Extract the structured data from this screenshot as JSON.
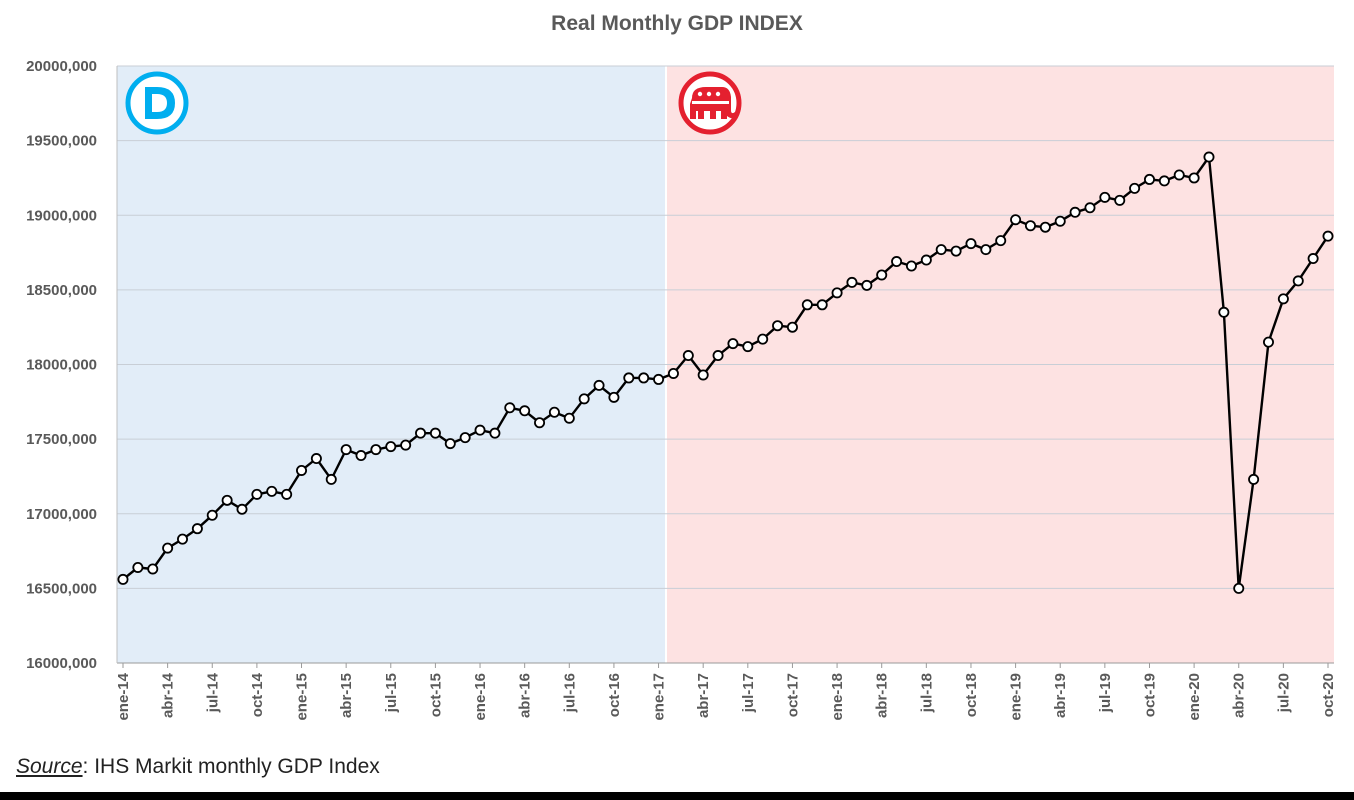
{
  "chart_data": {
    "type": "line",
    "title": "Real Monthly GDP INDEX",
    "ylim": [
      16000,
      20000
    ],
    "y_ticks": [
      "16000,000",
      "16500,000",
      "17000,000",
      "17500,000",
      "18000,000",
      "18500,000",
      "19000,000",
      "19500,000",
      "20000,000"
    ],
    "x_tick_labels": [
      {
        "index": 0,
        "label": "ene-14"
      },
      {
        "index": 3,
        "label": "abr-14"
      },
      {
        "index": 6,
        "label": "jul-14"
      },
      {
        "index": 9,
        "label": "oct-14"
      },
      {
        "index": 12,
        "label": "ene-15"
      },
      {
        "index": 15,
        "label": "abr-15"
      },
      {
        "index": 18,
        "label": "jul-15"
      },
      {
        "index": 21,
        "label": "oct-15"
      },
      {
        "index": 24,
        "label": "ene-16"
      },
      {
        "index": 27,
        "label": "abr-16"
      },
      {
        "index": 30,
        "label": "jul-16"
      },
      {
        "index": 33,
        "label": "oct-16"
      },
      {
        "index": 36,
        "label": "ene-17"
      },
      {
        "index": 39,
        "label": "abr-17"
      },
      {
        "index": 42,
        "label": "jul-17"
      },
      {
        "index": 45,
        "label": "oct-17"
      },
      {
        "index": 48,
        "label": "ene-18"
      },
      {
        "index": 51,
        "label": "abr-18"
      },
      {
        "index": 54,
        "label": "jul-18"
      },
      {
        "index": 57,
        "label": "oct-18"
      },
      {
        "index": 60,
        "label": "ene-19"
      },
      {
        "index": 63,
        "label": "abr-19"
      },
      {
        "index": 66,
        "label": "jul-19"
      },
      {
        "index": 69,
        "label": "oct-19"
      },
      {
        "index": 72,
        "label": "ene-20"
      },
      {
        "index": 75,
        "label": "abr-20"
      },
      {
        "index": 78,
        "label": "jul-20"
      },
      {
        "index": 81,
        "label": "oct-20"
      }
    ],
    "x_start": "2014-01",
    "x_end": "2020-10",
    "series": [
      {
        "values": [
          16560,
          16640,
          16630,
          16770,
          16830,
          16900,
          16990,
          17090,
          17030,
          17130,
          17150,
          17130,
          17290,
          17370,
          17230,
          17430,
          17390,
          17430,
          17450,
          17460,
          17540,
          17540,
          17470,
          17510,
          17560,
          17540,
          17710,
          17690,
          17610,
          17680,
          17640,
          17770,
          17860,
          17780,
          17910,
          17910,
          17900,
          17940,
          18060,
          17930,
          18060,
          18140,
          18120,
          18170,
          18260,
          18250,
          18400,
          18400,
          18480,
          18550,
          18530,
          18600,
          18690,
          18660,
          18700,
          18770,
          18760,
          18810,
          18770,
          18830,
          18970,
          18930,
          18920,
          18960,
          19020,
          19050,
          19120,
          19100,
          19180,
          19240,
          19230,
          19270,
          19250,
          19390,
          18350,
          16500,
          17230,
          18150,
          18440,
          18560,
          18710,
          18860
        ]
      }
    ],
    "regions": [
      {
        "from_index": 0,
        "to_index": 36.5,
        "color": "#e2edf8"
      },
      {
        "from_index": 36.5,
        "to_index": 81,
        "color": "#fde2e2"
      }
    ],
    "grid": true,
    "line_color": "#000000",
    "marker_fill": "#ffffff",
    "dem_logo_color": "#00aeef",
    "gop_logo_color": "#e4202f"
  },
  "source": {
    "label": "Source",
    "text": ": IHS Markit monthly GDP Index"
  }
}
